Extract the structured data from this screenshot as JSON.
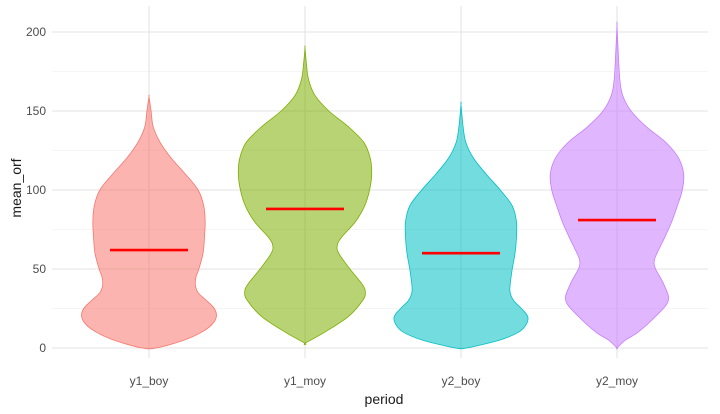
{
  "chart_data": {
    "type": "violin",
    "xlabel": "period",
    "ylabel": "mean_orf",
    "ylim": [
      0,
      210
    ],
    "yticks": [
      0,
      50,
      100,
      150,
      200
    ],
    "grid": true,
    "legend": "none",
    "median_color": "#ff0000",
    "series": [
      {
        "name": "y1_boy",
        "color": "#f8766d",
        "median": 62,
        "min": 0,
        "max": 159,
        "profile": [
          [
            0,
            0.1
          ],
          [
            5,
            0.5
          ],
          [
            10,
            0.75
          ],
          [
            15,
            0.9
          ],
          [
            20,
            0.96
          ],
          [
            25,
            0.93
          ],
          [
            30,
            0.82
          ],
          [
            35,
            0.7
          ],
          [
            40,
            0.66
          ],
          [
            45,
            0.67
          ],
          [
            50,
            0.71
          ],
          [
            60,
            0.77
          ],
          [
            70,
            0.79
          ],
          [
            80,
            0.8
          ],
          [
            90,
            0.78
          ],
          [
            100,
            0.7
          ],
          [
            110,
            0.52
          ],
          [
            120,
            0.32
          ],
          [
            130,
            0.16
          ],
          [
            140,
            0.06
          ],
          [
            150,
            0.03
          ],
          [
            159,
            0.0
          ]
        ]
      },
      {
        "name": "y1_moy",
        "color": "#7cae00",
        "median": 88,
        "min": 3,
        "max": 190,
        "profile": [
          [
            3,
            0.0
          ],
          [
            10,
            0.28
          ],
          [
            20,
            0.62
          ],
          [
            30,
            0.82
          ],
          [
            35,
            0.86
          ],
          [
            40,
            0.82
          ],
          [
            50,
            0.64
          ],
          [
            60,
            0.48
          ],
          [
            65,
            0.46
          ],
          [
            70,
            0.52
          ],
          [
            80,
            0.72
          ],
          [
            90,
            0.85
          ],
          [
            100,
            0.92
          ],
          [
            110,
            0.95
          ],
          [
            120,
            0.93
          ],
          [
            130,
            0.84
          ],
          [
            140,
            0.62
          ],
          [
            150,
            0.34
          ],
          [
            160,
            0.14
          ],
          [
            170,
            0.05
          ],
          [
            180,
            0.02
          ],
          [
            190,
            0.0
          ]
        ]
      },
      {
        "name": "y2_boy",
        "color": "#00bfc4",
        "median": 60,
        "min": 0,
        "max": 154,
        "profile": [
          [
            0,
            0.08
          ],
          [
            5,
            0.55
          ],
          [
            10,
            0.82
          ],
          [
            15,
            0.93
          ],
          [
            20,
            0.95
          ],
          [
            25,
            0.86
          ],
          [
            30,
            0.75
          ],
          [
            35,
            0.7
          ],
          [
            40,
            0.7
          ],
          [
            50,
            0.73
          ],
          [
            60,
            0.77
          ],
          [
            70,
            0.79
          ],
          [
            80,
            0.79
          ],
          [
            90,
            0.73
          ],
          [
            100,
            0.56
          ],
          [
            110,
            0.36
          ],
          [
            120,
            0.18
          ],
          [
            130,
            0.07
          ],
          [
            140,
            0.03
          ],
          [
            154,
            0.0
          ]
        ]
      },
      {
        "name": "y2_moy",
        "color": "#c77cff",
        "median": 81,
        "min": 0,
        "max": 204,
        "profile": [
          [
            0,
            0.0
          ],
          [
            5,
            0.12
          ],
          [
            10,
            0.3
          ],
          [
            20,
            0.55
          ],
          [
            30,
            0.73
          ],
          [
            40,
            0.67
          ],
          [
            50,
            0.55
          ],
          [
            55,
            0.53
          ],
          [
            60,
            0.57
          ],
          [
            70,
            0.68
          ],
          [
            80,
            0.78
          ],
          [
            90,
            0.86
          ],
          [
            100,
            0.93
          ],
          [
            110,
            0.95
          ],
          [
            120,
            0.88
          ],
          [
            130,
            0.7
          ],
          [
            140,
            0.42
          ],
          [
            150,
            0.2
          ],
          [
            160,
            0.08
          ],
          [
            170,
            0.04
          ],
          [
            185,
            0.02
          ],
          [
            204,
            0.0
          ]
        ]
      }
    ]
  }
}
